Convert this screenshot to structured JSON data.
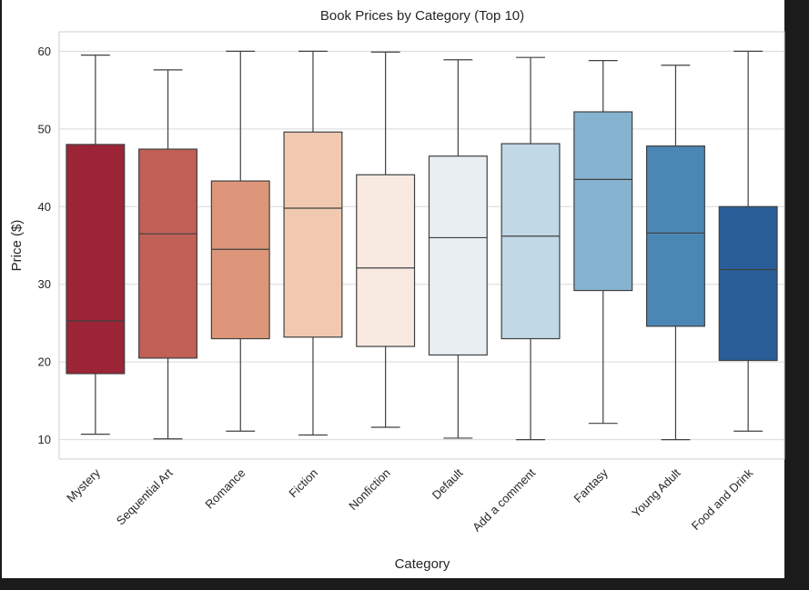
{
  "chart_data": {
    "type": "box",
    "title": "Book Prices by Category (Top 10)",
    "xlabel": "Category",
    "ylabel": "Price ($)",
    "ylim": [
      7.5,
      62.5
    ],
    "yticks": [
      10,
      20,
      30,
      40,
      50,
      60
    ],
    "grid": true,
    "categories": [
      "Mystery",
      "Sequential Art",
      "Romance",
      "Fiction",
      "Nonfiction",
      "Default",
      "Add a comment",
      "Fantasy",
      "Young Adult",
      "Food and Drink"
    ],
    "colors": [
      "#9b2436",
      "#c16056",
      "#dd9679",
      "#f1c9b1",
      "#f8e9e1",
      "#e9eef2",
      "#c1d8e7",
      "#86b3d0",
      "#4b87b5",
      "#295e98"
    ],
    "series": [
      {
        "category": "Mystery",
        "min": 10.7,
        "q1": 18.5,
        "median": 25.3,
        "q3": 48.0,
        "max": 59.5
      },
      {
        "category": "Sequential Art",
        "min": 10.1,
        "q1": 20.5,
        "median": 36.5,
        "q3": 47.4,
        "max": 57.6
      },
      {
        "category": "Romance",
        "min": 11.1,
        "q1": 23.0,
        "median": 34.5,
        "q3": 43.3,
        "max": 60.0
      },
      {
        "category": "Fiction",
        "min": 10.6,
        "q1": 23.2,
        "median": 39.8,
        "q3": 49.6,
        "max": 60.0
      },
      {
        "category": "Nonfiction",
        "min": 11.6,
        "q1": 22.0,
        "median": 32.1,
        "q3": 44.1,
        "max": 59.9
      },
      {
        "category": "Default",
        "min": 10.2,
        "q1": 20.9,
        "median": 36.0,
        "q3": 46.5,
        "max": 58.9
      },
      {
        "category": "Add a comment",
        "min": 10.0,
        "q1": 23.0,
        "median": 36.2,
        "q3": 48.1,
        "max": 59.2
      },
      {
        "category": "Fantasy",
        "min": 12.1,
        "q1": 29.2,
        "median": 43.5,
        "q3": 52.2,
        "max": 58.8
      },
      {
        "category": "Young Adult",
        "min": 10.0,
        "q1": 24.6,
        "median": 36.6,
        "q3": 47.8,
        "max": 58.2
      },
      {
        "category": "Food and Drink",
        "min": 11.1,
        "q1": 20.2,
        "median": 31.9,
        "q3": 40.0,
        "max": 60.0
      }
    ]
  }
}
